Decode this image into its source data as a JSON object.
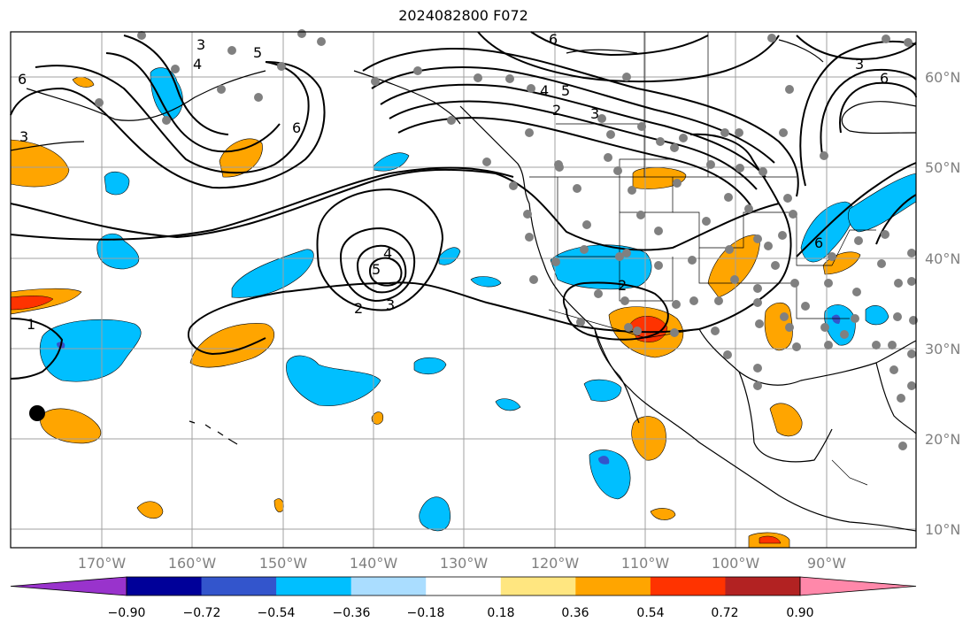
{
  "title": "2024082800 F072",
  "lat_labels": [
    "60°N",
    "50°N",
    "40°N",
    "30°N",
    "20°N",
    "10°N"
  ],
  "lon_labels": [
    "170°W",
    "160°W",
    "150°W",
    "140°W",
    "130°W",
    "120°W",
    "110°W",
    "100°W",
    "90°W"
  ],
  "colorbar": {
    "tick_labels": [
      "−0.90",
      "−0.72",
      "−0.54",
      "−0.36",
      "−0.18",
      "0.18",
      "0.36",
      "0.54",
      "0.72",
      "0.90"
    ],
    "colors": [
      "#9933cc",
      "#000099",
      "#3355cc",
      "#00bfff",
      "#aaddff",
      "#ffffff",
      "#ffe680",
      "#ffa500",
      "#ff3300",
      "#b22222",
      "#ff88aa"
    ]
  },
  "contour_labels": [
    "6",
    "5",
    "4",
    "3",
    "6",
    "3",
    "6",
    "5",
    "4",
    "3",
    "2",
    "6",
    "3",
    "6",
    "4",
    "5",
    "2",
    "3",
    "2",
    "1"
  ],
  "colors": {
    "grid": "#a0a0a0",
    "contour": "#000000",
    "station": "#808080",
    "positive": "#ffa500",
    "negative": "#00bfff",
    "strong_positive": "#ff3300"
  }
}
